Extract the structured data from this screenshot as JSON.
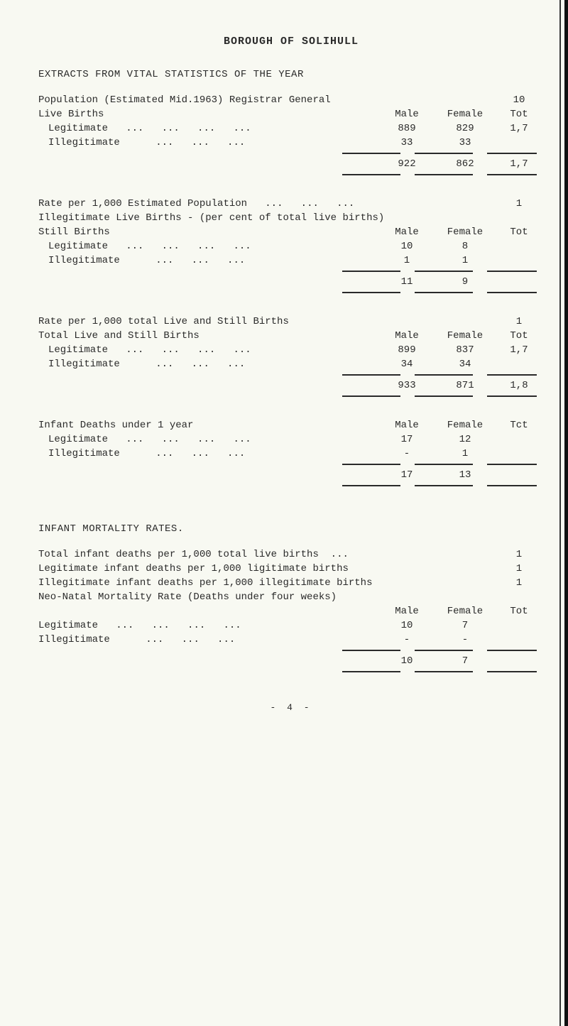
{
  "title": "BOROUGH OF SOLIHULL",
  "section1_heading": "EXTRACTS FROM VITAL STATISTICS OF THE YEAR",
  "pop_line_label": "Population (Estimated Mid.1963) Registrar General",
  "pop_line_val": "10",
  "colhead_livebirths": "Live Births",
  "col_male": "Male",
  "col_female": "Female",
  "col_tot1": "Tot",
  "legitimate_label": "Legitimate",
  "illegitimate_label": "Illegitimate",
  "lb_leg_male": "889",
  "lb_leg_female": "829",
  "lb_leg_tot": "1,7",
  "lb_illeg_male": "33",
  "lb_illeg_female": "33",
  "lb_tot_male": "922",
  "lb_tot_female": "862",
  "lb_tot_tot": "1,7",
  "rate_pop_label": "Rate per 1,000 Estimated Population",
  "rate_pop_val": "1",
  "illeg_lb_label": "Illegitimate Live Births - (per cent of total live births)",
  "still_births_label": "Still Births",
  "col_tot2": "Tot",
  "sb_leg_male": "10",
  "sb_leg_female": "8",
  "sb_illeg_male": "1",
  "sb_illeg_female": "1",
  "sb_tot_male": "11",
  "sb_tot_female": "9",
  "rate_still_label": "Rate per 1,000 total Live and Still Births",
  "rate_still_val": "1",
  "total_ls_label": "Total Live and Still Births",
  "col_tot3": "Tot",
  "ls_leg_male": "899",
  "ls_leg_female": "837",
  "ls_leg_tot": "1,7",
  "ls_illeg_male": "34",
  "ls_illeg_female": "34",
  "ls_tot_male": "933",
  "ls_tot_female": "871",
  "ls_tot_tot": "1,8",
  "infant_deaths_label": "Infant Deaths under 1 year",
  "col_tot4": "Tct",
  "id_leg_male": "17",
  "id_leg_female": "12",
  "id_illeg_male": "-",
  "id_illeg_female": "1",
  "id_tot_male": "17",
  "id_tot_female": "13",
  "imr_heading": "INFANT MORTALITY RATES.",
  "imr_total_label": "Total infant deaths per 1,000 total live births  ...",
  "imr_total_val": "1",
  "imr_leg_label": "Legitimate infant deaths per 1,000 ligitimate births",
  "imr_leg_val": "1",
  "imr_illeg_label": "Illegitimate infant deaths per 1,000 illegitimate births",
  "imr_illeg_val": "1",
  "neo_label": "Neo-Natal Mortality Rate (Deaths under four weeks)",
  "col_tot5": "Tot",
  "neo_leg_male": "10",
  "neo_leg_female": "7",
  "neo_illeg_male": "-",
  "neo_illeg_female": "-",
  "neo_tot_male": "10",
  "neo_tot_female": "7",
  "page_number": "- 4 -"
}
